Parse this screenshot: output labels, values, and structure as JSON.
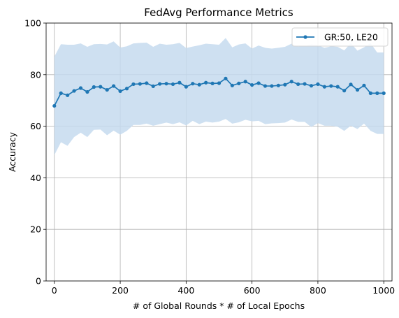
{
  "chart_data": {
    "type": "line",
    "title": "FedAvg Performance Metrics",
    "xlabel": "# of Global Rounds * # of Local Epochs",
    "ylabel": "Accuracy",
    "xlim": [
      -25,
      1025
    ],
    "ylim": [
      0,
      100
    ],
    "xticks": [
      "0",
      "200",
      "400",
      "600",
      "800",
      "1000"
    ],
    "xtick_values": [
      0,
      200,
      400,
      600,
      800,
      1000
    ],
    "yticks": [
      "0",
      "20",
      "40",
      "60",
      "80",
      "100"
    ],
    "ytick_values": [
      0,
      20,
      40,
      60,
      80,
      100
    ],
    "grid": true,
    "legend_position": "top-right",
    "series": [
      {
        "name": "GR:50, LE20",
        "color": "#1f77b4",
        "band_color": "#c6dbef",
        "x": [
          0,
          20,
          40,
          60,
          80,
          100,
          120,
          140,
          160,
          180,
          200,
          220,
          240,
          260,
          280,
          300,
          320,
          340,
          360,
          380,
          400,
          420,
          440,
          460,
          480,
          500,
          520,
          540,
          560,
          580,
          600,
          620,
          640,
          660,
          680,
          700,
          720,
          740,
          760,
          780,
          800,
          820,
          840,
          860,
          880,
          900,
          920,
          940,
          960,
          980,
          1000
        ],
        "values": [
          67.9,
          72.8,
          72.0,
          73.7,
          74.8,
          73.3,
          75.2,
          75.3,
          74.1,
          75.6,
          73.6,
          74.6,
          76.3,
          76.4,
          76.7,
          75.5,
          76.4,
          76.5,
          76.3,
          76.9,
          75.3,
          76.5,
          76.1,
          76.9,
          76.6,
          76.7,
          78.5,
          75.8,
          76.6,
          77.3,
          76.0,
          76.7,
          75.6,
          75.6,
          75.8,
          76.1,
          77.3,
          76.3,
          76.4,
          75.7,
          76.3,
          75.3,
          75.6,
          75.3,
          73.8,
          76.2,
          74.1,
          75.8,
          72.8,
          72.8,
          72.8
        ],
        "upper": [
          87.0,
          91.8,
          91.6,
          91.6,
          92.1,
          90.8,
          91.8,
          91.9,
          91.7,
          92.9,
          90.5,
          91.0,
          92.1,
          92.3,
          92.4,
          90.8,
          92.0,
          91.6,
          91.8,
          92.3,
          90.3,
          90.9,
          91.4,
          92.0,
          91.8,
          91.6,
          94.2,
          90.6,
          91.7,
          92.1,
          90.1,
          91.3,
          90.4,
          90.1,
          90.4,
          90.8,
          92.0,
          90.9,
          91.1,
          91.7,
          91.4,
          90.4,
          91.0,
          90.8,
          89.4,
          92.2,
          89.3,
          90.6,
          92.2,
          88.6,
          88.6
        ],
        "lower": [
          48.8,
          53.8,
          52.4,
          55.8,
          57.5,
          55.8,
          58.6,
          58.7,
          56.5,
          58.3,
          56.7,
          58.2,
          60.5,
          60.5,
          61.0,
          60.2,
          60.8,
          61.4,
          60.8,
          61.5,
          60.3,
          62.1,
          60.8,
          61.8,
          61.4,
          61.8,
          62.8,
          61.0,
          61.5,
          62.5,
          61.9,
          62.1,
          60.8,
          61.1,
          61.2,
          61.4,
          62.6,
          61.7,
          61.7,
          59.7,
          61.2,
          60.2,
          60.2,
          59.8,
          58.2,
          60.2,
          58.9,
          61.0,
          58.2,
          57.0,
          57.0
        ]
      }
    ]
  }
}
